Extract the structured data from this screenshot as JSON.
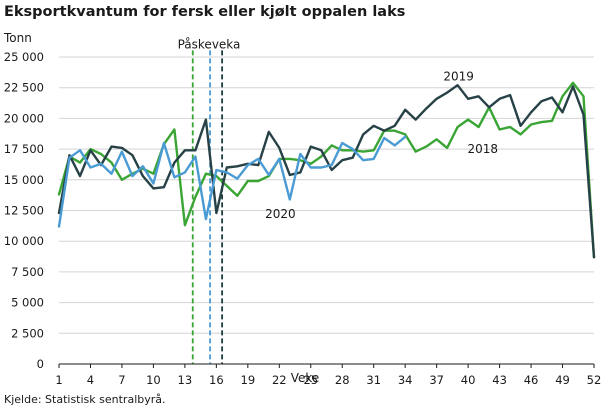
{
  "chart_data": {
    "type": "line",
    "title": "Eksportkvantum for fersk eller kjølt oppalen laks",
    "ylabel": "Tonn",
    "xlabel": "Veke",
    "source": "Kjelde: Statistisk sentralbyrå.",
    "ylim": [
      0,
      25000
    ],
    "xlim": [
      1,
      52
    ],
    "grid": true,
    "yticks": [
      0,
      2500,
      5000,
      7500,
      10000,
      12500,
      15000,
      17500,
      20000,
      22500,
      25000
    ],
    "ytick_labels": [
      "0",
      "2 500",
      "5 000",
      "7 500",
      "10 000",
      "12 500",
      "15 000",
      "17 500",
      "20 000",
      "22 500",
      "25 000"
    ],
    "xticks": [
      1,
      4,
      7,
      10,
      13,
      16,
      19,
      22,
      25,
      28,
      31,
      34,
      37,
      40,
      43,
      46,
      49,
      52
    ],
    "xtick_labels": [
      "1",
      "4",
      "7",
      "10",
      "13",
      "16",
      "19",
      "22",
      "25",
      "28",
      "31",
      "34",
      "37",
      "40",
      "43",
      "46",
      "49",
      "52"
    ],
    "annotations": [
      {
        "text": "Påskeveka",
        "x": 15.3,
        "y": 25700
      },
      {
        "text": "2019",
        "x": 39.1,
        "y": 23100
      },
      {
        "text": "2018",
        "x": 41.4,
        "y": 17200
      },
      {
        "text": "2020",
        "x": 22.1,
        "y": 11900
      }
    ],
    "vlines": [
      {
        "x": 13.75,
        "color": "#3aa535"
      },
      {
        "x": 15.4,
        "color": "#4a9bd4"
      },
      {
        "x": 16.55,
        "color": "#1e3a3f"
      }
    ],
    "series": [
      {
        "name": "2018",
        "color": "#3aa535",
        "x": [
          1,
          2,
          3,
          4,
          5,
          6,
          7,
          8,
          9,
          10,
          11,
          12,
          13,
          14,
          15,
          16,
          17,
          18,
          19,
          20,
          21,
          22,
          23,
          24,
          25,
          26,
          27,
          28,
          29,
          30,
          31,
          32,
          33,
          34,
          35,
          36,
          37,
          38,
          39,
          40,
          41,
          42,
          43,
          44,
          45,
          46,
          47,
          48,
          49,
          50,
          51,
          52
        ],
        "values": [
          13800,
          16900,
          16400,
          17500,
          17100,
          16400,
          15000,
          15500,
          15900,
          15500,
          17900,
          19100,
          11300,
          13600,
          15500,
          15300,
          14500,
          13700,
          14900,
          14900,
          15300,
          16700,
          16700,
          16600,
          16300,
          16900,
          17800,
          17400,
          17400,
          17300,
          17400,
          19000,
          19000,
          18700,
          17300,
          17700,
          18300,
          17600,
          19300,
          19900,
          19300,
          20900,
          19100,
          19300,
          18700,
          19500,
          19700,
          19800,
          21800,
          22900,
          21800,
          8700
        ]
      },
      {
        "name": "2019",
        "color": "#274247",
        "x": [
          1,
          2,
          3,
          4,
          5,
          6,
          7,
          8,
          9,
          10,
          11,
          12,
          13,
          14,
          15,
          16,
          17,
          18,
          19,
          20,
          21,
          22,
          23,
          24,
          25,
          26,
          27,
          28,
          29,
          30,
          31,
          32,
          33,
          34,
          35,
          36,
          37,
          38,
          39,
          40,
          41,
          42,
          43,
          44,
          45,
          46,
          47,
          48,
          49,
          50,
          51,
          52
        ],
        "values": [
          12300,
          17000,
          15300,
          17400,
          16200,
          17700,
          17600,
          17000,
          15300,
          14300,
          14400,
          16400,
          17400,
          17400,
          19900,
          12300,
          16000,
          16100,
          16300,
          16200,
          18900,
          17600,
          15400,
          15600,
          17700,
          17400,
          15800,
          16600,
          16800,
          18700,
          19400,
          19000,
          19400,
          20700,
          19900,
          20800,
          21600,
          22100,
          22700,
          21600,
          21800,
          20900,
          21600,
          21900,
          19400,
          20500,
          21400,
          21700,
          20500,
          22600,
          20300,
          8700
        ]
      },
      {
        "name": "2020",
        "color": "#4a9bd4",
        "x": [
          1,
          2,
          3,
          4,
          5,
          6,
          7,
          8,
          9,
          10,
          11,
          12,
          13,
          14,
          15,
          16,
          17,
          18,
          19,
          20,
          21,
          22,
          23,
          24,
          25,
          26,
          27,
          28,
          29,
          30,
          31,
          32,
          33,
          34
        ],
        "values": [
          11200,
          16800,
          17400,
          16000,
          16300,
          15500,
          17300,
          15300,
          16100,
          14700,
          18000,
          15200,
          15600,
          16900,
          11800,
          15800,
          15600,
          15100,
          16200,
          16700,
          15400,
          16700,
          13400,
          17100,
          16000,
          16000,
          16200,
          18000,
          17500,
          16600,
          16700,
          18400,
          17800,
          18500
        ]
      }
    ]
  }
}
